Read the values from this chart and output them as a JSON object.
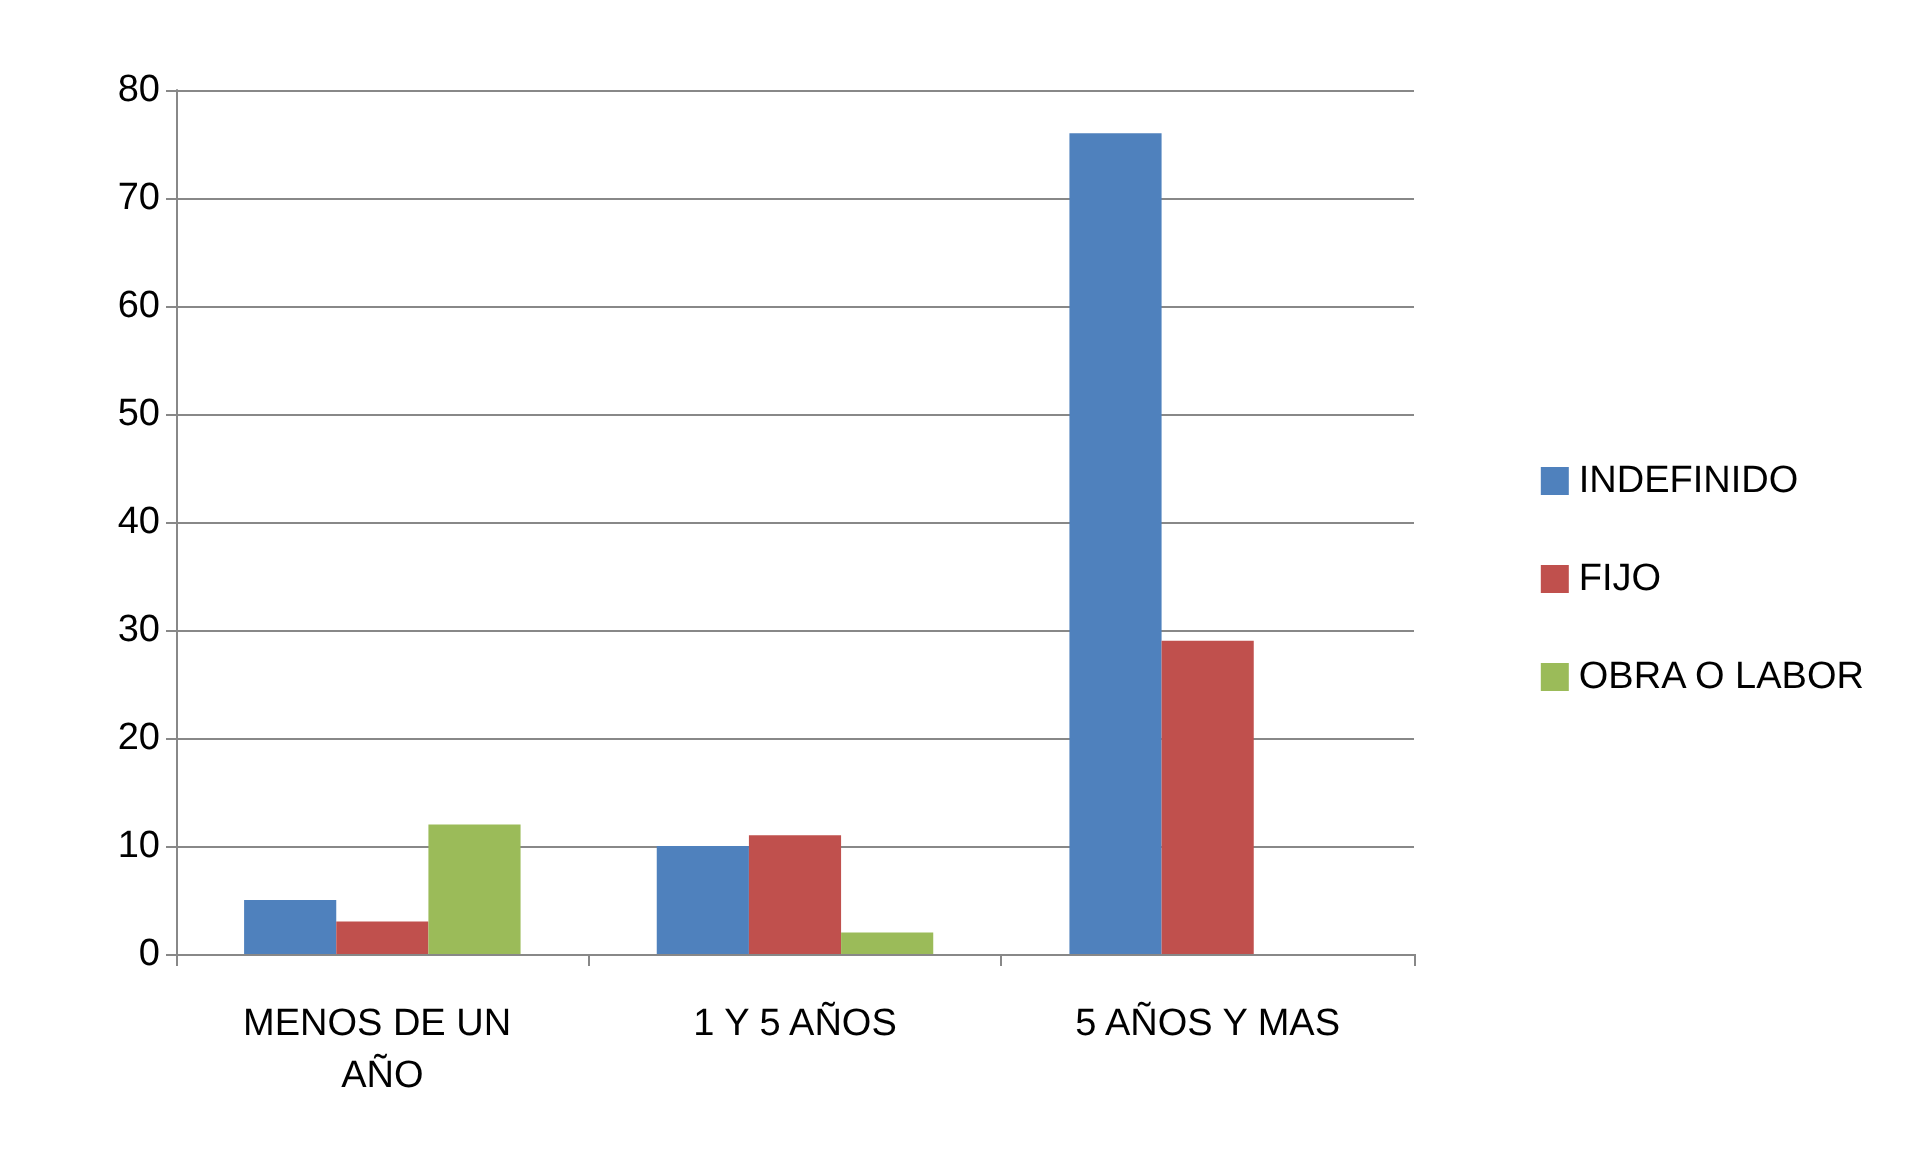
{
  "chart_data": {
    "type": "bar",
    "categories": [
      "MENOS DE UN AÑO",
      "1 Y 5 AÑOS",
      "5 AÑOS Y MAS"
    ],
    "series": [
      {
        "name": "INDEFINIDO",
        "color": "#4f81bd",
        "values": [
          5,
          10,
          76
        ]
      },
      {
        "name": "FIJO",
        "color": "#c0504d",
        "values": [
          3,
          11,
          29
        ]
      },
      {
        "name": "OBRA O LABOR",
        "color": "#9bbb59",
        "values": [
          12,
          2,
          0
        ]
      }
    ],
    "ylim": [
      0,
      80
    ],
    "yticks": [
      0,
      10,
      20,
      30,
      40,
      50,
      60,
      70,
      80
    ],
    "grid": "y",
    "legend": "right"
  }
}
